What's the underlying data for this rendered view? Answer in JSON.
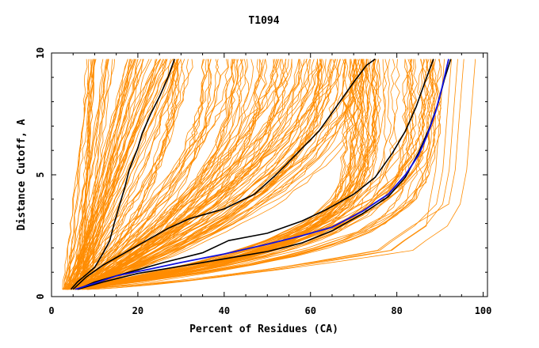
{
  "chart_data": {
    "type": "line",
    "title": "T1094",
    "xlabel": "Percent of Residues (CA)",
    "ylabel": "Distance Cutoff, A",
    "xlim": [
      0,
      101
    ],
    "ylim": [
      0,
      10
    ],
    "x_ticks": [
      0,
      20,
      40,
      60,
      80,
      100
    ],
    "y_ticks": [
      0,
      5,
      10
    ],
    "clip_y": 9.75,
    "grid": false,
    "legend": "none",
    "background_series_count": 220,
    "colors": {
      "background": "#ff8c00",
      "highlight": "#000000",
      "best": "#1010e0"
    },
    "highlighted_series": [
      {
        "x": [
          4.5,
          6,
          8,
          10,
          12,
          13.5,
          14.5,
          15.5,
          17,
          18,
          20,
          21,
          23,
          25,
          27,
          28.5
        ],
        "y": [
          0.3,
          0.6,
          0.9,
          1.2,
          1.8,
          2.3,
          3.0,
          3.6,
          4.5,
          5.2,
          6.1,
          6.7,
          7.5,
          8.2,
          9.0,
          9.75
        ]
      },
      {
        "x": [
          5,
          8,
          12,
          17,
          22,
          27,
          32,
          40,
          47,
          52,
          57,
          62,
          66,
          70,
          73,
          75
        ],
        "y": [
          0.3,
          0.8,
          1.3,
          1.8,
          2.3,
          2.8,
          3.2,
          3.6,
          4.2,
          5.0,
          5.9,
          6.8,
          7.8,
          8.8,
          9.5,
          9.75
        ]
      },
      {
        "x": [
          6,
          10,
          18,
          26,
          35,
          41,
          50,
          58,
          64,
          70,
          75,
          79,
          82,
          84.5,
          86.5,
          88.5
        ],
        "y": [
          0.3,
          0.6,
          1.0,
          1.4,
          1.8,
          2.3,
          2.6,
          3.1,
          3.6,
          4.2,
          4.9,
          5.9,
          6.8,
          7.8,
          8.8,
          9.75
        ]
      },
      {
        "x": [
          6,
          12,
          20,
          30,
          40,
          50,
          58,
          65,
          72,
          78,
          82,
          85,
          87.5,
          89.5,
          91,
          92.5
        ],
        "y": [
          0.3,
          0.6,
          0.95,
          1.25,
          1.55,
          1.85,
          2.2,
          2.7,
          3.4,
          4.1,
          4.9,
          5.9,
          6.9,
          7.9,
          8.9,
          9.75
        ]
      }
    ],
    "best_series": {
      "x": [
        5.5,
        10,
        15,
        22,
        30,
        40,
        50,
        58,
        65,
        72,
        78,
        82,
        85,
        87,
        89,
        90.5,
        92
      ],
      "y": [
        0.3,
        0.55,
        0.85,
        1.1,
        1.4,
        1.75,
        2.15,
        2.5,
        2.85,
        3.5,
        4.2,
        5.0,
        5.8,
        6.6,
        7.6,
        8.6,
        9.75
      ]
    }
  }
}
